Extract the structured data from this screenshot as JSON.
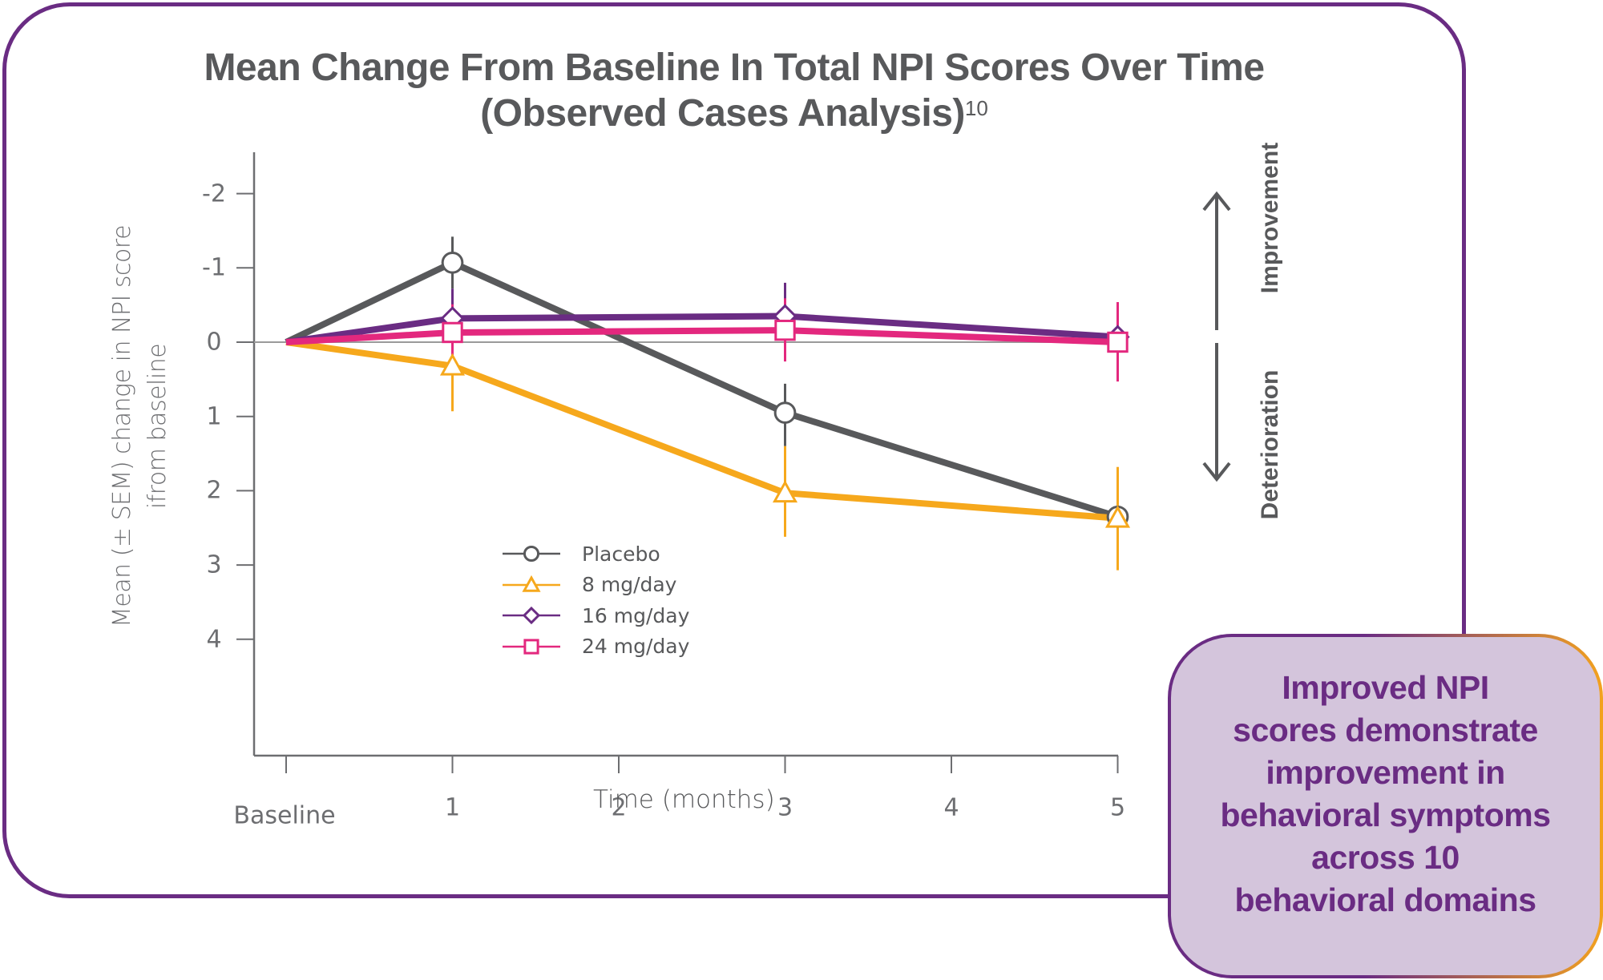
{
  "title": {
    "line1": "Mean Change From Baseline In Total NPI Scores Over Time",
    "line2": "(Observed Cases Analysis)",
    "superscript": "10"
  },
  "colors": {
    "frame": "#6a2c83",
    "callout_bg": "#d4c5dc",
    "callout_text": "#6a2c83",
    "callout_border_end": "#f3a21e",
    "axis": "#6d6e71",
    "text": "#58595b"
  },
  "chart_data": {
    "type": "line",
    "title": "Mean Change From Baseline In Total NPI Scores Over Time (Observed Cases Analysis)",
    "xlabel": "Time (months)",
    "ylabel_lines": [
      "Mean (± SEM) change in NPI score",
      "ifrom baseline"
    ],
    "x_values": [
      0,
      1,
      2,
      3,
      4,
      5
    ],
    "x_tick_labels": [
      "Baseline",
      "1",
      "2",
      "3",
      "4",
      "5"
    ],
    "y_ticks": [
      -2,
      -1,
      0,
      1,
      2,
      3,
      4
    ],
    "y_tick_labels": [
      "-2",
      "-1",
      "0",
      "1",
      "2",
      "3",
      "4"
    ],
    "ylim": [
      -2.5,
      5.5
    ],
    "y_inverted": true,
    "xlim": [
      -0.2,
      5
    ],
    "zero_reference_line": true,
    "legend_position": "center",
    "series": [
      {
        "name": "Placebo",
        "color": "#58595b",
        "marker": "circle",
        "x": [
          0,
          1,
          3,
          5
        ],
        "y": [
          0,
          -1.07,
          0.95,
          2.35
        ],
        "err_low": [
          null,
          -1.42,
          0.56,
          1.87
        ],
        "err_high": [
          null,
          -0.72,
          1.4,
          2.87
        ]
      },
      {
        "name": "8 mg/day",
        "color": "#f6a81c",
        "marker": "triangle",
        "x": [
          0,
          1,
          3,
          5
        ],
        "y": [
          0,
          0.32,
          2.03,
          2.37
        ],
        "err_low": [
          null,
          -0.28,
          1.4,
          1.68
        ],
        "err_high": [
          null,
          0.93,
          2.62,
          3.07
        ]
      },
      {
        "name": "16 mg/day",
        "color": "#6a2c83",
        "marker": "diamond",
        "x": [
          0,
          1,
          3,
          5
        ],
        "y": [
          0,
          -0.32,
          -0.35,
          -0.07
        ],
        "err_low": [
          null,
          -0.72,
          -0.8,
          -0.52
        ],
        "err_high": [
          null,
          0.05,
          0.1,
          0.38
        ]
      },
      {
        "name": "24 mg/day",
        "color": "#e3287e",
        "marker": "square",
        "x": [
          0,
          1,
          3,
          5
        ],
        "y": [
          0,
          -0.13,
          -0.16,
          0.0
        ],
        "err_low": [
          null,
          -0.51,
          -0.59,
          -0.54
        ],
        "err_high": [
          null,
          0.32,
          0.26,
          0.53
        ]
      }
    ],
    "annotations": {
      "up": "Improvement",
      "down": "Deterioration"
    }
  },
  "callout": {
    "lines": [
      "Improved NPI",
      "scores demonstrate",
      "improvement in",
      "behavioral symptoms",
      "across 10",
      "behavioral domains"
    ]
  }
}
